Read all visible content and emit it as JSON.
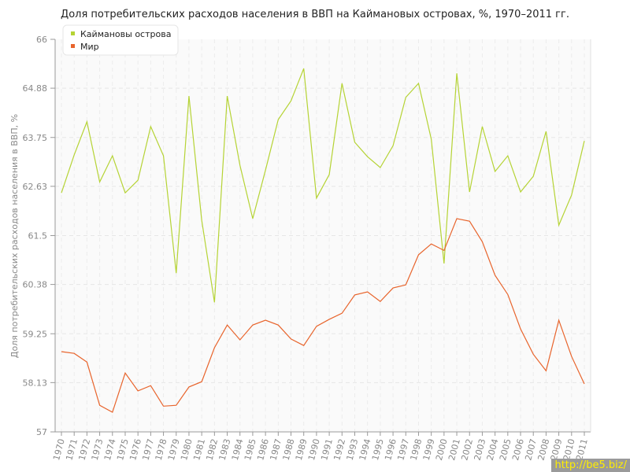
{
  "chart_data": {
    "type": "line",
    "title": "Доля потребительских расходов населения в ВВП на Каймановых островах, %, 1970–2011 гг.",
    "ylabel": "Доля потребительских расходов населения в ВВП, %",
    "xlabel": "",
    "ylim": [
      57,
      66
    ],
    "yticks": [
      "57",
      "58.13",
      "59.25",
      "60.38",
      "61.5",
      "62.63",
      "63.75",
      "64.88",
      "66"
    ],
    "grid": true,
    "legend": "top-left",
    "x": [
      "1970",
      "1971",
      "1972",
      "1973",
      "1974",
      "1975",
      "1976",
      "1977",
      "1978",
      "1979",
      "1980",
      "1981",
      "1982",
      "1983",
      "1984",
      "1985",
      "1986",
      "1987",
      "1988",
      "1989",
      "1990",
      "1991",
      "1992",
      "1993",
      "1994",
      "1995",
      "1996",
      "1997",
      "1998",
      "1999",
      "2000",
      "2001",
      "2002",
      "2003",
      "2004",
      "2005",
      "2006",
      "2007",
      "2008",
      "2009",
      "2010",
      "2011"
    ],
    "series": [
      {
        "name": "Каймановы острова",
        "color": "#b5d334",
        "values": [
          62.48,
          63.35,
          64.11,
          62.73,
          63.33,
          62.48,
          62.77,
          64.0,
          63.33,
          60.64,
          64.7,
          61.85,
          59.97,
          64.7,
          63.11,
          61.89,
          63.0,
          64.16,
          64.59,
          65.33,
          62.36,
          62.9,
          64.99,
          63.64,
          63.31,
          63.06,
          63.56,
          64.67,
          64.99,
          63.71,
          60.86,
          65.22,
          62.5,
          64.0,
          62.97,
          63.33,
          62.5,
          62.86,
          63.89,
          61.74,
          62.43,
          63.67
        ]
      },
      {
        "name": "Мир",
        "color": "#e8642c",
        "values": [
          58.84,
          58.8,
          58.6,
          57.61,
          57.45,
          58.35,
          57.94,
          58.06,
          57.59,
          57.61,
          58.03,
          58.15,
          58.93,
          59.45,
          59.11,
          59.45,
          59.56,
          59.45,
          59.13,
          58.98,
          59.42,
          59.58,
          59.72,
          60.14,
          60.21,
          59.99,
          60.3,
          60.37,
          61.06,
          61.31,
          61.16,
          61.89,
          61.83,
          61.36,
          60.59,
          60.15,
          59.36,
          58.78,
          58.4,
          59.56,
          58.73,
          58.1
        ]
      }
    ]
  },
  "watermark": "http://be5.biz/"
}
